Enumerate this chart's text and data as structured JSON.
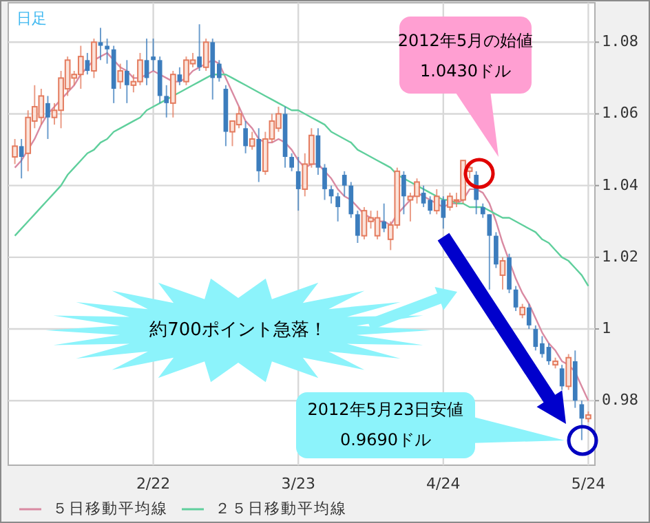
{
  "chart_data": {
    "type": "candlestick",
    "grid": true,
    "legend": "bottom left",
    "categories": [
      null,
      null,
      null,
      null,
      null,
      null,
      null,
      null,
      null,
      null,
      null,
      null,
      null,
      null,
      null,
      null,
      null,
      null,
      null,
      null,
      null,
      "2/22",
      null,
      null,
      null,
      null,
      null,
      null,
      null,
      null,
      null,
      null,
      null,
      null,
      null,
      null,
      null,
      null,
      null,
      null,
      null,
      null,
      null,
      "3/23",
      null,
      null,
      null,
      null,
      null,
      null,
      null,
      null,
      null,
      null,
      null,
      null,
      null,
      null,
      null,
      null,
      null,
      null,
      null,
      null,
      null,
      "4/24",
      null,
      null,
      null,
      null,
      null,
      null,
      null,
      null,
      null,
      null,
      null,
      null,
      null,
      null,
      null,
      null,
      null,
      null,
      null,
      null,
      null,
      "5/24"
    ],
    "ylim": [
      0.962,
      1.091
    ],
    "yticks": [
      0.98,
      1,
      1.02,
      1.04,
      1.06,
      1.08
    ],
    "colors": [
      "#e47b5e",
      "#3c7dbd",
      "#e47b5e",
      "#e47b5e",
      "#e47b5e",
      "#3c7dbd",
      "#e47b5e",
      "#e47b5e",
      "#e47b5e",
      "#e47b5e",
      "#e47b5e",
      "#3c7dbd",
      "#e47b5e",
      "#3c7dbd",
      "#3c7dbd",
      "#3c7dbd",
      "#e47b5e",
      "#3c7dbd",
      "#e47b5e",
      "#e47b5e",
      "#3c7dbd",
      "#3c7dbd",
      "#3c7dbd",
      "#3c7dbd",
      "#e47b5e",
      "#3c7dbd",
      "#e47b5e",
      "#e47b5e",
      "#3c7dbd",
      "#e47b5e",
      "#3c7dbd",
      "#3c7dbd",
      "#3c7dbd",
      "#e47b5e",
      "#e47b5e",
      "#3c7dbd",
      "#e47b5e",
      "#3c7dbd",
      "#e47b5e",
      "#e47b5e",
      "#e47b5e",
      "#3c7dbd",
      "#3c7dbd",
      "#3c7dbd",
      "#e47b5e",
      "#e47b5e",
      "#3c7dbd",
      "#3c7dbd",
      "#3c7dbd",
      "#3c7dbd",
      "#3c7dbd",
      "#3c7dbd",
      "#3c7dbd",
      "#e47b5e",
      "#e47b5e",
      "#e47b5e",
      "#3c7dbd",
      "#e47b5e",
      "#e47b5e",
      "#3c7dbd",
      "#e47b5e",
      "#e47b5e",
      "#3c7dbd",
      "#3c7dbd",
      "#e47b5e",
      "#3c7dbd",
      "#e47b5e",
      "#e47b5e",
      "#e47b5e",
      "#e47b5e",
      "#3c7dbd",
      "#3c7dbd",
      "#3c7dbd",
      "#3c7dbd",
      "#e47b5e",
      "#3c7dbd",
      "#3c7dbd",
      "#e47b5e",
      "#3c7dbd",
      "#3c7dbd",
      "#3c7dbd",
      "#3c7dbd",
      "#e47b5e",
      "#3c7dbd",
      "#e47b5e",
      "#3c7dbd",
      "#3c7dbd",
      "#e47b5e"
    ],
    "ohlc": [
      [
        1.048,
        1.053,
        1.046,
        1.051
      ],
      [
        1.051,
        1.053,
        1.042,
        1.048
      ],
      [
        1.049,
        1.061,
        1.044,
        1.059
      ],
      [
        1.058,
        1.068,
        1.056,
        1.062
      ],
      [
        1.059,
        1.067,
        1.057,
        1.065
      ],
      [
        1.063,
        1.065,
        1.053,
        1.059
      ],
      [
        1.059,
        1.063,
        1.057,
        1.061
      ],
      [
        1.061,
        1.072,
        1.056,
        1.07
      ],
      [
        1.067,
        1.076,
        1.065,
        1.075
      ],
      [
        1.07,
        1.072,
        1.068,
        1.071
      ],
      [
        1.071,
        1.079,
        1.067,
        1.076
      ],
      [
        1.075,
        1.077,
        1.071,
        1.072
      ],
      [
        1.072,
        1.081,
        1.07,
        1.08
      ],
      [
        1.08,
        1.084,
        1.075,
        1.079
      ],
      [
        1.079,
        1.081,
        1.074,
        1.078
      ],
      [
        1.078,
        1.079,
        1.063,
        1.067
      ],
      [
        1.069,
        1.074,
        1.067,
        1.072
      ],
      [
        1.072,
        1.075,
        1.063,
        1.068
      ],
      [
        1.068,
        1.071,
        1.066,
        1.069
      ],
      [
        1.069,
        1.077,
        1.068,
        1.075
      ],
      [
        1.075,
        1.081,
        1.068,
        1.07
      ],
      [
        1.076,
        1.081,
        1.072,
        1.075
      ],
      [
        1.075,
        1.076,
        1.063,
        1.065
      ],
      [
        1.065,
        1.068,
        1.059,
        1.063
      ],
      [
        1.063,
        1.072,
        1.059,
        1.071
      ],
      [
        1.071,
        1.073,
        1.068,
        1.069
      ],
      [
        1.069,
        1.076,
        1.068,
        1.075
      ],
      [
        1.074,
        1.077,
        1.073,
        1.075
      ],
      [
        1.076,
        1.085,
        1.072,
        1.073
      ],
      [
        1.073,
        1.081,
        1.072,
        1.08
      ],
      [
        1.08,
        1.081,
        1.064,
        1.07
      ],
      [
        1.074,
        1.075,
        1.069,
        1.07
      ],
      [
        1.067,
        1.068,
        1.051,
        1.055
      ],
      [
        1.055,
        1.058,
        1.051,
        1.058
      ],
      [
        1.057,
        1.062,
        1.056,
        1.06
      ],
      [
        1.056,
        1.058,
        1.049,
        1.051
      ],
      [
        1.051,
        1.055,
        1.05,
        1.053
      ],
      [
        1.053,
        1.056,
        1.041,
        1.044
      ],
      [
        1.044,
        1.055,
        1.043,
        1.053
      ],
      [
        1.053,
        1.06,
        1.052,
        1.058
      ],
      [
        1.056,
        1.062,
        1.055,
        1.06
      ],
      [
        1.06,
        1.062,
        1.045,
        1.048
      ],
      [
        1.048,
        1.049,
        1.044,
        1.045
      ],
      [
        1.044,
        1.048,
        1.033,
        1.039
      ],
      [
        1.039,
        1.049,
        1.037,
        1.046
      ],
      [
        1.046,
        1.056,
        1.045,
        1.054
      ],
      [
        1.054,
        1.056,
        1.043,
        1.045
      ],
      [
        1.045,
        1.046,
        1.036,
        1.039
      ],
      [
        1.039,
        1.04,
        1.035,
        1.037
      ],
      [
        1.037,
        1.038,
        1.03,
        1.034
      ],
      [
        1.043,
        1.044,
        1.037,
        1.04
      ],
      [
        1.04,
        1.041,
        1.031,
        1.032
      ],
      [
        1.032,
        1.033,
        1.024,
        1.026
      ],
      [
        1.026,
        1.034,
        1.025,
        1.033
      ],
      [
        1.03,
        1.033,
        1.028,
        1.031
      ],
      [
        1.026,
        1.033,
        1.025,
        1.031
      ],
      [
        1.03,
        1.035,
        1.027,
        1.028
      ],
      [
        1.025,
        1.03,
        1.022,
        1.029
      ],
      [
        1.029,
        1.045,
        1.028,
        1.044
      ],
      [
        1.043,
        1.044,
        1.032,
        1.037
      ],
      [
        1.036,
        1.038,
        1.03,
        1.037
      ],
      [
        1.037,
        1.042,
        1.035,
        1.041
      ],
      [
        1.038,
        1.04,
        1.034,
        1.035
      ],
      [
        1.036,
        1.037,
        1.032,
        1.033
      ],
      [
        1.033,
        1.039,
        1.032,
        1.037
      ],
      [
        1.036,
        1.037,
        1.028,
        1.031
      ],
      [
        1.034,
        1.038,
        1.033,
        1.037
      ],
      [
        1.036,
        1.038,
        1.034,
        1.036
      ],
      [
        1.036,
        1.047,
        1.035,
        1.047
      ],
      [
        1.044,
        1.046,
        1.042,
        1.045
      ],
      [
        1.043,
        1.044,
        1.032,
        1.036
      ],
      [
        1.034,
        1.035,
        1.031,
        1.032
      ],
      [
        1.032,
        1.032,
        1.011,
        1.026
      ],
      [
        1.026,
        1.027,
        1.017,
        1.018
      ],
      [
        1.015,
        1.02,
        1.011,
        1.019
      ],
      [
        1.02,
        1.021,
        1.01,
        1.011
      ],
      [
        1.011,
        1.012,
        1.005,
        1.006
      ],
      [
        1.004,
        1.007,
        1.003,
        1.006
      ],
      [
        1.006,
        1.007,
        1.0,
        1.001
      ],
      [
        1.0,
        1.001,
        0.994,
        0.995
      ],
      [
        0.996,
        0.998,
        0.992,
        0.993
      ],
      [
        0.995,
        0.996,
        0.99,
        0.991
      ],
      [
        0.99,
        0.992,
        0.989,
        0.991
      ],
      [
        0.989,
        0.99,
        0.983,
        0.984
      ],
      [
        0.984,
        0.993,
        0.983,
        0.992
      ],
      [
        0.991,
        0.994,
        0.978,
        0.98
      ],
      [
        0.979,
        0.98,
        0.969,
        0.975
      ],
      [
        0.975,
        0.977,
        0.974,
        0.976
      ]
    ],
    "series": [
      {
        "type": "line",
        "name": "５日移動平均線",
        "color": "#d98aa2",
        "values": [
          1.045,
          1.047,
          1.05,
          1.053,
          1.057,
          1.06,
          1.062,
          1.064,
          1.066,
          1.068,
          1.071,
          1.073,
          1.075,
          1.076,
          1.077,
          1.075,
          1.073,
          1.072,
          1.07,
          1.07,
          1.071,
          1.072,
          1.071,
          1.07,
          1.069,
          1.069,
          1.07,
          1.072,
          1.073,
          1.074,
          1.075,
          1.074,
          1.07,
          1.066,
          1.062,
          1.058,
          1.056,
          1.053,
          1.052,
          1.052,
          1.053,
          1.052,
          1.05,
          1.047,
          1.045,
          1.046,
          1.046,
          1.044,
          1.042,
          1.039,
          1.037,
          1.036,
          1.034,
          1.032,
          1.031,
          1.03,
          1.03,
          1.029,
          1.032,
          1.034,
          1.036,
          1.038,
          1.037,
          1.036,
          1.035,
          1.034,
          1.035,
          1.035,
          1.036,
          1.039,
          1.039,
          1.038,
          1.035,
          1.03,
          1.024,
          1.019,
          1.014,
          1.01,
          1.007,
          1.003,
          0.999,
          0.996,
          0.994,
          0.991,
          0.99,
          0.988,
          0.984,
          0.98
        ]
      },
      {
        "type": "line",
        "name": "２５日移動平均線",
        "color": "#5fcf9c",
        "values": [
          1.026,
          1.028,
          1.03,
          1.032,
          1.034,
          1.036,
          1.038,
          1.04,
          1.043,
          1.045,
          1.047,
          1.049,
          1.05,
          1.052,
          1.053,
          1.055,
          1.056,
          1.057,
          1.058,
          1.059,
          1.061,
          1.062,
          1.063,
          1.064,
          1.065,
          1.066,
          1.067,
          1.068,
          1.069,
          1.07,
          1.071,
          1.071,
          1.071,
          1.07,
          1.069,
          1.068,
          1.067,
          1.066,
          1.065,
          1.064,
          1.063,
          1.062,
          1.061,
          1.061,
          1.06,
          1.059,
          1.058,
          1.057,
          1.055,
          1.054,
          1.053,
          1.052,
          1.05,
          1.049,
          1.048,
          1.047,
          1.046,
          1.045,
          1.043,
          1.042,
          1.041,
          1.04,
          1.039,
          1.038,
          1.037,
          1.036,
          1.036,
          1.035,
          1.035,
          1.034,
          1.034,
          1.034,
          1.033,
          1.032,
          1.031,
          1.031,
          1.03,
          1.029,
          1.028,
          1.027,
          1.025,
          1.024,
          1.022,
          1.02,
          1.019,
          1.017,
          1.015,
          1.012
        ]
      }
    ],
    "annotations": [
      "日足",
      "2012年5月の始値\n1.0430ドル",
      "2012年5月23日安値\n0.9690ドル",
      "約700ポイント急落！"
    ]
  }
}
